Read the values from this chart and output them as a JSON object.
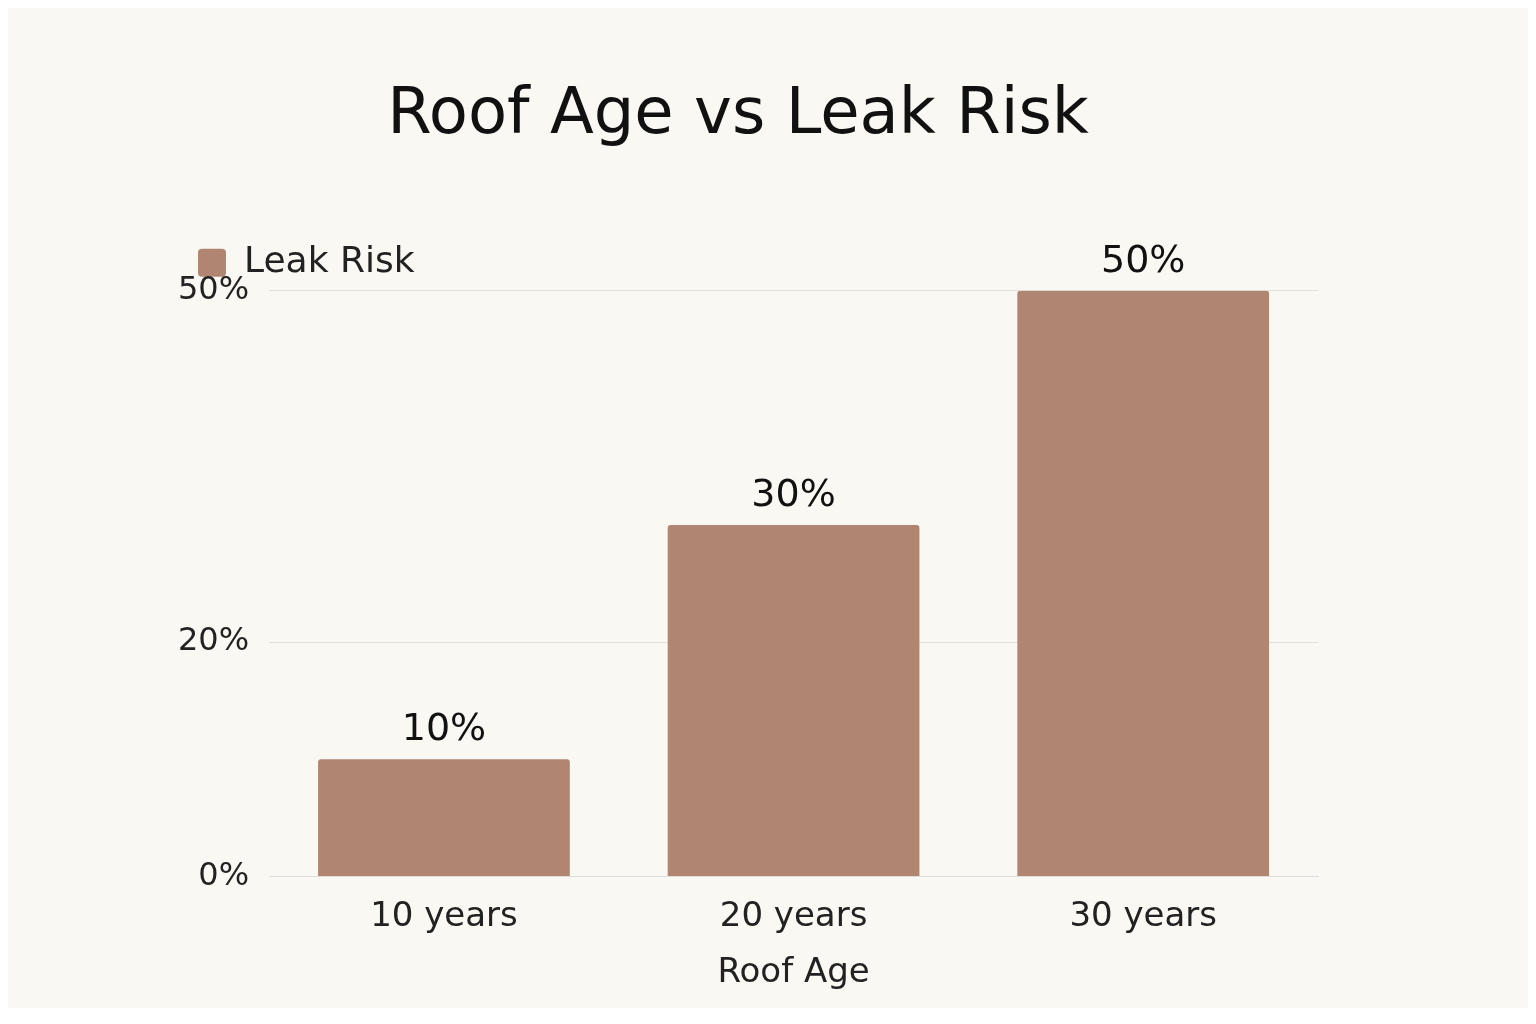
{
  "chart_data": {
    "type": "bar",
    "title": "Roof Age vs Leak Risk",
    "xlabel": "Roof Age",
    "categories": [
      "10 years",
      "20 years",
      "30 years"
    ],
    "series": [
      {
        "name": "Leak Risk",
        "color": "#b08572",
        "values": [
          10,
          30,
          50
        ],
        "value_labels": [
          "10%",
          "30%",
          "50%"
        ]
      }
    ],
    "ylim": [
      0,
      50
    ],
    "yticks": [
      {
        "value": 0,
        "label": "0%"
      },
      {
        "value": 20,
        "label": "20%"
      },
      {
        "value": 50,
        "label": "50%"
      }
    ],
    "grid": "y",
    "legend": "top left"
  }
}
